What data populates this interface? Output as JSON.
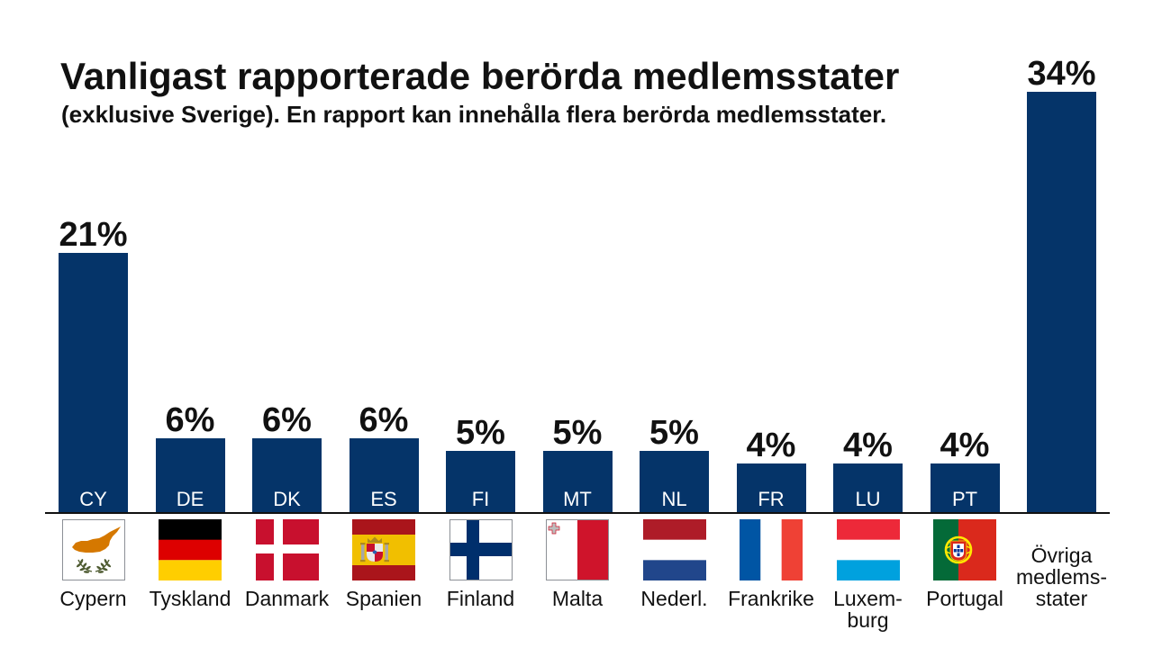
{
  "chart_data": {
    "type": "bar",
    "title": "Vanligast rapporterade berörda medlemsstater",
    "subtitle": "(exklusive Sverige). En rapport kan innehålla flera berörda medlemsstater.",
    "categories": [
      "Cypern",
      "Tyskland",
      "Danmark",
      "Spanien",
      "Finland",
      "Malta",
      "Nederl.",
      "Frankrike",
      "Luxem-\nburg",
      "Portugal",
      "Övriga\nmedlems-\nstater"
    ],
    "codes": [
      "CY",
      "DE",
      "DK",
      "ES",
      "FI",
      "MT",
      "NL",
      "FR",
      "LU",
      "PT",
      ""
    ],
    "values": [
      21,
      6,
      6,
      6,
      5,
      5,
      5,
      4,
      4,
      4,
      34
    ],
    "value_labels": [
      "21%",
      "6%",
      "6%",
      "6%",
      "5%",
      "5%",
      "5%",
      "4%",
      "4%",
      "4%",
      "34%"
    ],
    "flags": [
      "cyprus-flag-icon",
      "germany-flag-icon",
      "denmark-flag-icon",
      "spain-flag-icon",
      "finland-flag-icon",
      "malta-flag-icon",
      "netherlands-flag-icon",
      "france-flag-icon",
      "luxembourg-flag-icon",
      "portugal-flag-icon",
      ""
    ],
    "ylim": [
      0,
      34
    ],
    "grid": false
  },
  "colors": {
    "bar": "#053469",
    "bar_code_text": "#ffffff",
    "text": "#111111",
    "axis": "#111111",
    "background": "#ffffff"
  }
}
